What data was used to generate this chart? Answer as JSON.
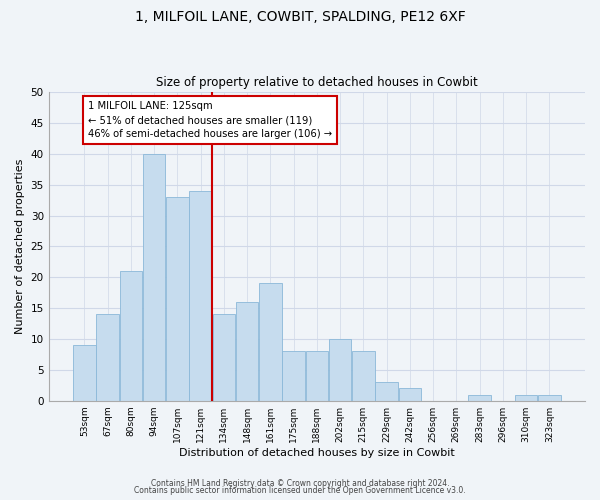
{
  "title_line1": "1, MILFOIL LANE, COWBIT, SPALDING, PE12 6XF",
  "title_line2": "Size of property relative to detached houses in Cowbit",
  "xlabel": "Distribution of detached houses by size in Cowbit",
  "ylabel": "Number of detached properties",
  "bar_labels": [
    "53sqm",
    "67sqm",
    "80sqm",
    "94sqm",
    "107sqm",
    "121sqm",
    "134sqm",
    "148sqm",
    "161sqm",
    "175sqm",
    "188sqm",
    "202sqm",
    "215sqm",
    "229sqm",
    "242sqm",
    "256sqm",
    "269sqm",
    "283sqm",
    "296sqm",
    "310sqm",
    "323sqm"
  ],
  "bar_values": [
    9,
    14,
    21,
    40,
    33,
    34,
    14,
    16,
    19,
    8,
    8,
    10,
    8,
    3,
    2,
    0,
    0,
    1,
    0,
    1,
    1
  ],
  "bar_color": "#c6dcee",
  "bar_edge_color": "#8bb8d8",
  "vline_x": 5.5,
  "vline_color": "#cc0000",
  "annotation_title": "1 MILFOIL LANE: 125sqm",
  "annotation_line1": "← 51% of detached houses are smaller (119)",
  "annotation_line2": "46% of semi-detached houses are larger (106) →",
  "annotation_box_color": "#ffffff",
  "annotation_box_edge": "#cc0000",
  "ylim": [
    0,
    50
  ],
  "yticks": [
    0,
    5,
    10,
    15,
    20,
    25,
    30,
    35,
    40,
    45,
    50
  ],
  "footer_line1": "Contains HM Land Registry data © Crown copyright and database right 2024.",
  "footer_line2": "Contains public sector information licensed under the Open Government Licence v3.0.",
  "grid_color": "#d0d8e8",
  "bg_color": "#f0f4f8"
}
